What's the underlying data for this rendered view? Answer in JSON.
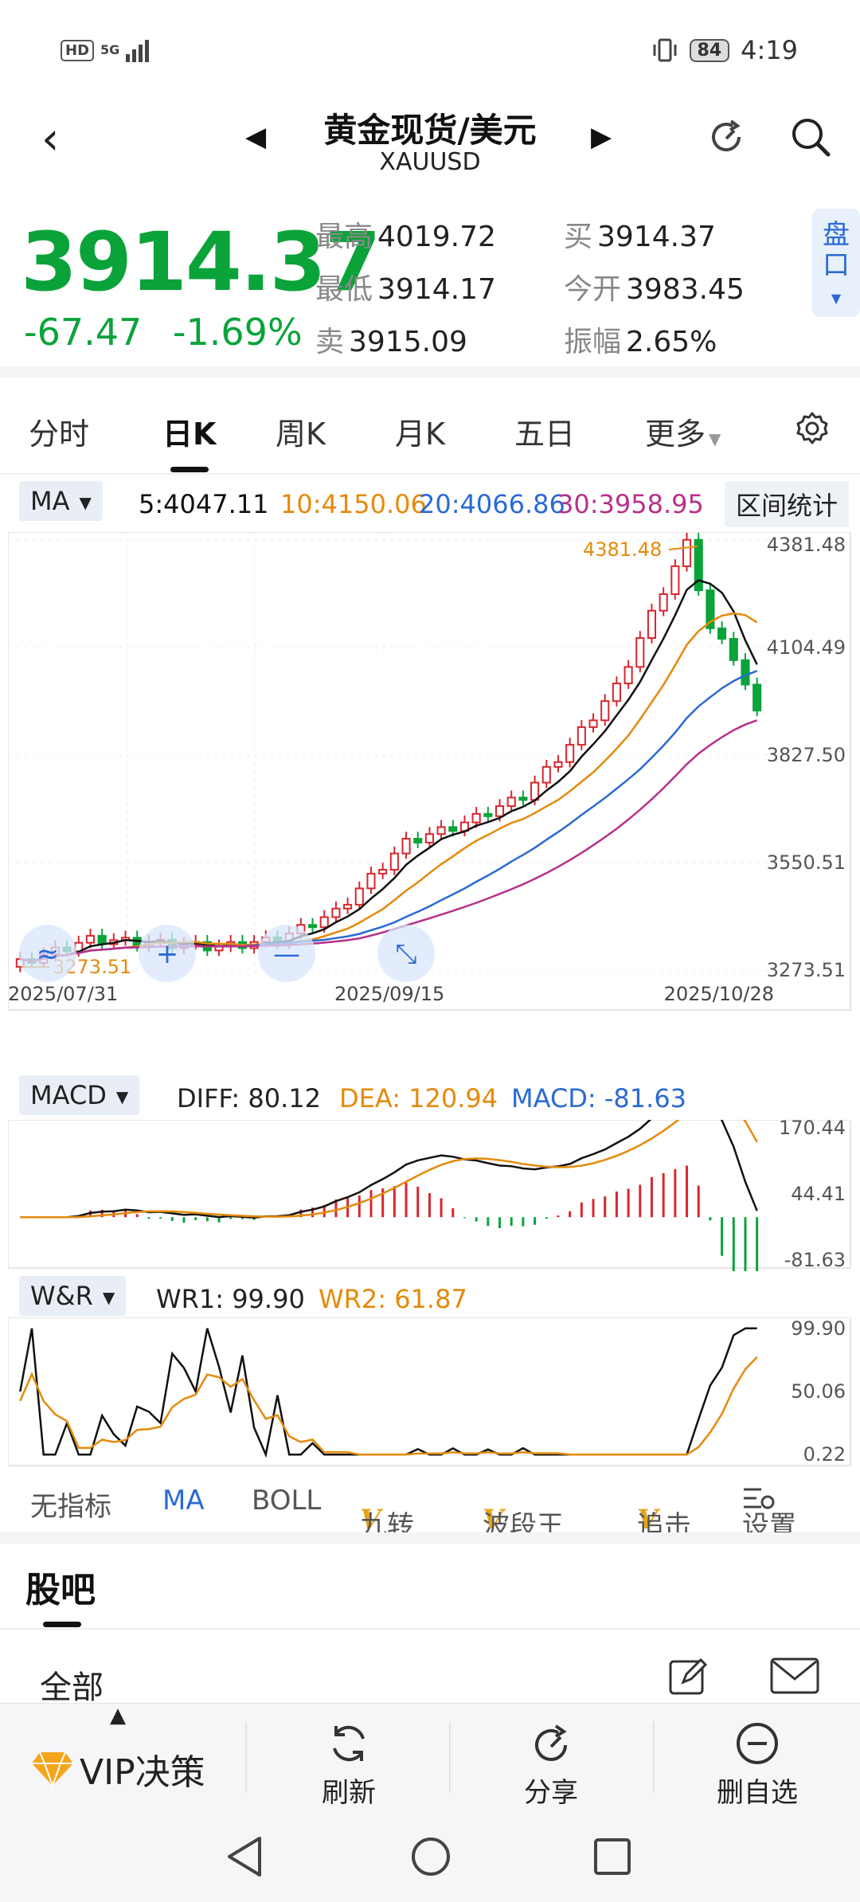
{
  "status_bar": {
    "hd": "HD",
    "network": "5G",
    "battery": "84",
    "time": "4:19"
  },
  "header": {
    "title": "黄金现货/美元",
    "symbol": "XAUUSD"
  },
  "quote": {
    "price": "3914.37",
    "change": "-67.47",
    "change_pct": "-1.69%",
    "high_label": "最高",
    "high": "4019.72",
    "low_label": "最低",
    "low": "3914.17",
    "ask_label": "卖",
    "ask": "3915.09",
    "bid_label": "买",
    "bid": "3914.37",
    "open_label": "今开",
    "open": "3983.45",
    "amp_label": "振幅",
    "amp": "2.65%",
    "pankou": "盘口"
  },
  "tabs": [
    "分时",
    "日K",
    "周K",
    "月K",
    "五日",
    "更多"
  ],
  "active_tab": "日K",
  "ma_row": {
    "selector": "MA",
    "ma5": "5:4047.11",
    "ma10": "10:4150.06",
    "ma20": "20:4066.86",
    "ma30": "30:3958.95",
    "stat_button": "区间统计"
  },
  "colors": {
    "up": "#d9262e",
    "down": "#0aa33a",
    "ma5": "#111111",
    "ma10": "#e58a0c",
    "ma20": "#2a6ad4",
    "ma30": "#b8308a",
    "accent_blue": "#2a6ad4"
  },
  "kline": {
    "y_ticks": [
      "4381.48",
      "4104.49",
      "3827.50",
      "3550.51",
      "3273.51"
    ],
    "x_ticks": [
      "2025/07/31",
      "2025/09/15",
      "2025/10/28"
    ],
    "high_marker": "4381.48",
    "low_marker": "3273.51",
    "ylim": [
      3273.51,
      4381.48
    ]
  },
  "macd_row": {
    "selector": "MACD",
    "diff": "DIFF: 80.12",
    "dea": "DEA: 120.94",
    "macd": "MACD: -81.63",
    "y_ticks": [
      "170.44",
      "44.41",
      "-81.63"
    ]
  },
  "wr_row": {
    "selector": "W&R",
    "wr1": "WR1: 99.90",
    "wr2": "WR2: 61.87",
    "y_ticks": [
      "99.90",
      "50.06",
      "0.22"
    ]
  },
  "indicator_tabs": {
    "none": "无指标",
    "ma": "MA",
    "boll": "BOLL",
    "v_mark": "V",
    "jiuzhuan": "九转",
    "boduanwang": "波段王",
    "zhuiji": "追击",
    "settings": "设置"
  },
  "guba": {
    "title": "股吧",
    "all": "全部"
  },
  "actions": {
    "vip": "VIP决策",
    "refresh": "刷新",
    "share": "分享",
    "remove": "删自选"
  },
  "chart_data": {
    "type": "candlestick",
    "series_names": [
      "5",
      "10",
      "20",
      "30"
    ],
    "ylim": [
      3273.51,
      4381.48
    ]
  }
}
